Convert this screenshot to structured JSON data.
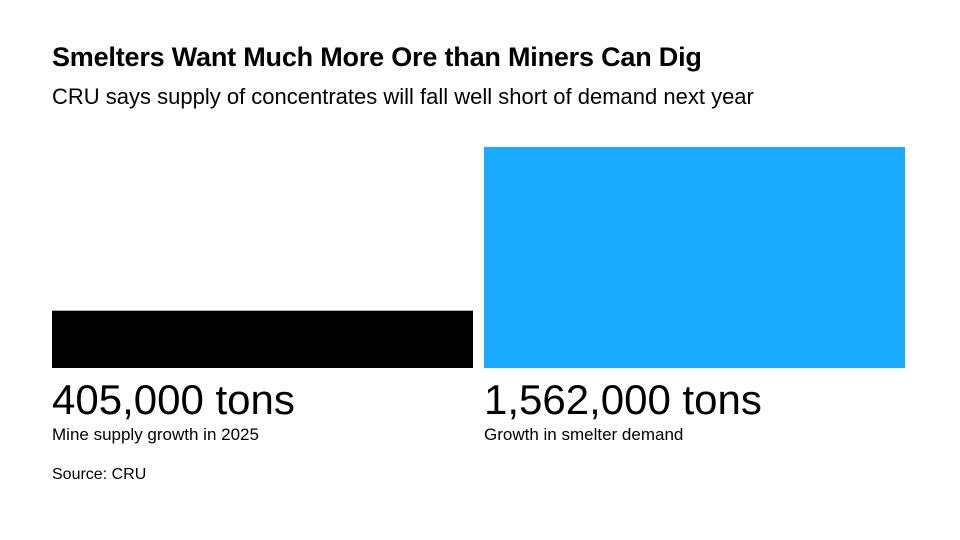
{
  "title": "Smelters Want Much More Ore than Miners Can Dig",
  "subtitle": "CRU says supply of concentrates will fall well short of demand next year",
  "source": "Source: CRU",
  "colors": {
    "supply": "#000000",
    "demand": "#1AABFF",
    "text": "#000000"
  },
  "chart_data": {
    "type": "bar",
    "categories": [
      "Mine supply growth in 2025",
      "Growth in smelter demand"
    ],
    "values": [
      405000,
      1562000
    ],
    "value_labels": [
      "405,000 tons",
      "1,562,000 tons"
    ],
    "unit": "tons",
    "title": "Smelters Want Much More Ore than Miners Can Dig",
    "subtitle": "CRU says supply of concentrates will fall well short of demand next year",
    "xlabel": "",
    "ylabel": "",
    "ylim": [
      0,
      1562000
    ],
    "grid": false,
    "legend": "none"
  }
}
